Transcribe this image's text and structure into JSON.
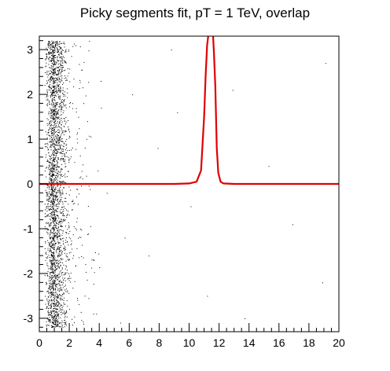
{
  "chart_data": {
    "type": "scatter",
    "title": "Picky segments fit, pT = 1 TeV, overlap",
    "xlabel": "",
    "ylabel": "",
    "xlim": [
      0,
      20
    ],
    "ylim": [
      -3.3,
      3.3
    ],
    "x_ticks": [
      0,
      2,
      4,
      6,
      8,
      10,
      12,
      14,
      16,
      18,
      20
    ],
    "y_ticks": [
      -3,
      -2,
      -1,
      0,
      1,
      2,
      3
    ],
    "grid": false,
    "legend": "none",
    "series": [
      {
        "type": "scatter",
        "color": "#000000",
        "points_note_free": true,
        "clusters": [
          {
            "x_center": 1.0,
            "x_spread": 0.45,
            "y_range": [
              -3.2,
              3.2
            ],
            "count": 2600
          },
          {
            "x_center": 2.6,
            "x_spread": 0.7,
            "y_range": [
              -3.2,
              3.2
            ],
            "count": 120
          }
        ],
        "sparse_points": [
          [
            3.2,
            1.4
          ],
          [
            3.6,
            -2.9
          ],
          [
            4.1,
            2.3
          ],
          [
            4.5,
            -0.2
          ],
          [
            5.4,
            -3.1
          ],
          [
            6.2,
            2.0
          ],
          [
            7.3,
            -1.6
          ],
          [
            8.8,
            3.0
          ],
          [
            10.1,
            -0.5
          ],
          [
            12.9,
            2.1
          ],
          [
            15.3,
            0.4
          ],
          [
            16.9,
            -0.9
          ],
          [
            18.9,
            -2.2
          ],
          [
            19.1,
            2.7
          ],
          [
            13.7,
            -3.0
          ],
          [
            9.2,
            1.6
          ],
          [
            5.7,
            -1.2
          ],
          [
            7.9,
            0.8
          ],
          [
            11.2,
            -2.5
          ],
          [
            3.9,
            0.3
          ]
        ]
      },
      {
        "type": "line",
        "color": "#e00000",
        "x": [
          0,
          9,
          10,
          10.5,
          10.8,
          11.0,
          11.1,
          11.2,
          11.35,
          11.45,
          11.55,
          11.65,
          11.75,
          11.85,
          11.95,
          12.1,
          12.3,
          13,
          20
        ],
        "y": [
          0,
          0,
          0.01,
          0.05,
          0.3,
          1.5,
          2.4,
          3.1,
          3.5,
          3.7,
          3.6,
          3.0,
          2.2,
          0.8,
          0.25,
          0.05,
          0.01,
          0,
          0
        ]
      }
    ]
  }
}
